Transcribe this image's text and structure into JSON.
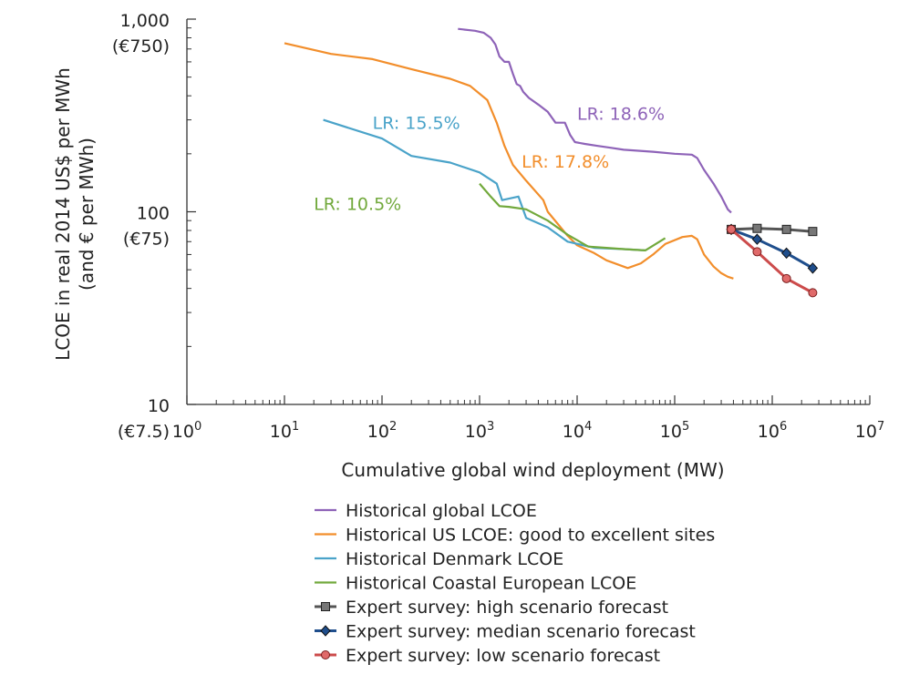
{
  "chart_data": {
    "type": "line",
    "title": "",
    "xlabel": "Cumulative global wind deployment (MW)",
    "ylabel_line1": "LCOE in real 2014 US$ per MWh",
    "ylabel_line2": "(and € per MWh)",
    "x_scale": "log",
    "y_scale": "log",
    "xlim": [
      1,
      10000000
    ],
    "ylim": [
      10,
      1000
    ],
    "grid": false,
    "legend_position": "bottom",
    "x_ticks": [
      {
        "value": 1,
        "base": "10",
        "exp": "0"
      },
      {
        "value": 10,
        "base": "10",
        "exp": "1"
      },
      {
        "value": 100,
        "base": "10",
        "exp": "2"
      },
      {
        "value": 1000,
        "base": "10",
        "exp": "3"
      },
      {
        "value": 10000,
        "base": "10",
        "exp": "4"
      },
      {
        "value": 100000,
        "base": "10",
        "exp": "5"
      },
      {
        "value": 1000000,
        "base": "10",
        "exp": "6"
      },
      {
        "value": 10000000,
        "base": "10",
        "exp": "7"
      }
    ],
    "y_ticks": [
      {
        "value": 1000,
        "label": "1,000",
        "sub": "(€750)"
      },
      {
        "value": 100,
        "label": "100",
        "sub": "(€75)"
      },
      {
        "value": 10,
        "label": "10",
        "sub": "(€7.5)"
      }
    ],
    "series": [
      {
        "name": "Historical global LCOE",
        "color": "#8e63b8",
        "marker": "none",
        "points": [
          [
            600,
            890
          ],
          [
            900,
            870
          ],
          [
            1100,
            850
          ],
          [
            1300,
            800
          ],
          [
            1450,
            740
          ],
          [
            1600,
            640
          ],
          [
            1800,
            600
          ],
          [
            2000,
            600
          ],
          [
            2200,
            520
          ],
          [
            2400,
            460
          ],
          [
            2600,
            450
          ],
          [
            2800,
            420
          ],
          [
            3200,
            390
          ],
          [
            4000,
            360
          ],
          [
            5000,
            330
          ],
          [
            6000,
            290
          ],
          [
            7500,
            290
          ],
          [
            8500,
            250
          ],
          [
            9500,
            230
          ],
          [
            12000,
            225
          ],
          [
            16000,
            220
          ],
          [
            22000,
            215
          ],
          [
            30000,
            210
          ],
          [
            60000,
            205
          ],
          [
            100000,
            200
          ],
          [
            150000,
            198
          ],
          [
            170000,
            190
          ],
          [
            200000,
            165
          ],
          [
            250000,
            140
          ],
          [
            300000,
            120
          ],
          [
            350000,
            103
          ],
          [
            380000,
            99
          ]
        ]
      },
      {
        "name": "Historical US LCOE: good to excellent sites",
        "color": "#f28e2b",
        "marker": "none",
        "points": [
          [
            10,
            750
          ],
          [
            30,
            660
          ],
          [
            80,
            620
          ],
          [
            200,
            550
          ],
          [
            500,
            490
          ],
          [
            800,
            450
          ],
          [
            1000,
            410
          ],
          [
            1200,
            380
          ],
          [
            1500,
            290
          ],
          [
            1800,
            220
          ],
          [
            2200,
            175
          ],
          [
            3000,
            145
          ],
          [
            4500,
            115
          ],
          [
            5000,
            100
          ],
          [
            8000,
            75
          ],
          [
            10000,
            67
          ],
          [
            15000,
            61
          ],
          [
            20000,
            56
          ],
          [
            33000,
            51
          ],
          [
            45000,
            54
          ],
          [
            60000,
            60
          ],
          [
            80000,
            68
          ],
          [
            120000,
            74
          ],
          [
            150000,
            75
          ],
          [
            170000,
            72
          ],
          [
            200000,
            60
          ],
          [
            250000,
            52
          ],
          [
            300000,
            48
          ],
          [
            350000,
            46
          ],
          [
            400000,
            45
          ]
        ]
      },
      {
        "name": "Historical Denmark LCOE",
        "color": "#4aa3c9",
        "marker": "none",
        "points": [
          [
            25,
            300
          ],
          [
            100,
            240
          ],
          [
            200,
            195
          ],
          [
            500,
            180
          ],
          [
            1000,
            160
          ],
          [
            1500,
            140
          ],
          [
            1700,
            115
          ],
          [
            2000,
            117
          ],
          [
            2500,
            120
          ],
          [
            3000,
            93
          ],
          [
            5000,
            83
          ],
          [
            8000,
            70
          ],
          [
            15000,
            65
          ],
          [
            30000,
            64
          ],
          [
            50000,
            63
          ]
        ]
      },
      {
        "name": "Historical Coastal European LCOE",
        "color": "#72a93c",
        "marker": "none",
        "points": [
          [
            1000,
            140
          ],
          [
            1300,
            120
          ],
          [
            1600,
            107
          ],
          [
            2000,
            106
          ],
          [
            3000,
            103
          ],
          [
            5000,
            90
          ],
          [
            8000,
            76
          ],
          [
            13000,
            66
          ],
          [
            20000,
            65
          ],
          [
            30000,
            64
          ],
          [
            50000,
            63
          ],
          [
            80000,
            73
          ]
        ]
      },
      {
        "name": "Expert survey: high scenario forecast",
        "color": "#555555",
        "marker": "square",
        "points": [
          [
            380000,
            81
          ],
          [
            700000,
            82
          ],
          [
            1400000,
            81
          ],
          [
            2600000,
            79
          ]
        ]
      },
      {
        "name": "Expert survey: median scenario forecast",
        "color": "#1f4e8c",
        "marker": "diamond",
        "points": [
          [
            380000,
            81
          ],
          [
            700000,
            72
          ],
          [
            1400000,
            61
          ],
          [
            2600000,
            51
          ]
        ]
      },
      {
        "name": "Expert survey: low scenario forecast",
        "color": "#cc4b4b",
        "marker": "circle",
        "points": [
          [
            380000,
            81
          ],
          [
            700000,
            62
          ],
          [
            1400000,
            45
          ],
          [
            2600000,
            38
          ]
        ]
      }
    ],
    "annotations": [
      {
        "text": "LR: 18.6%",
        "color": "#8e63b8",
        "x": 10000,
        "y": 300
      },
      {
        "text": "LR: 15.5%",
        "color": "#4aa3c9",
        "x": 80,
        "y": 270
      },
      {
        "text": "LR: 17.8%",
        "color": "#f28e2b",
        "x": 2700,
        "y": 170
      },
      {
        "text": "LR: 10.5%",
        "color": "#72a93c",
        "x": 20,
        "y": 102
      }
    ]
  }
}
